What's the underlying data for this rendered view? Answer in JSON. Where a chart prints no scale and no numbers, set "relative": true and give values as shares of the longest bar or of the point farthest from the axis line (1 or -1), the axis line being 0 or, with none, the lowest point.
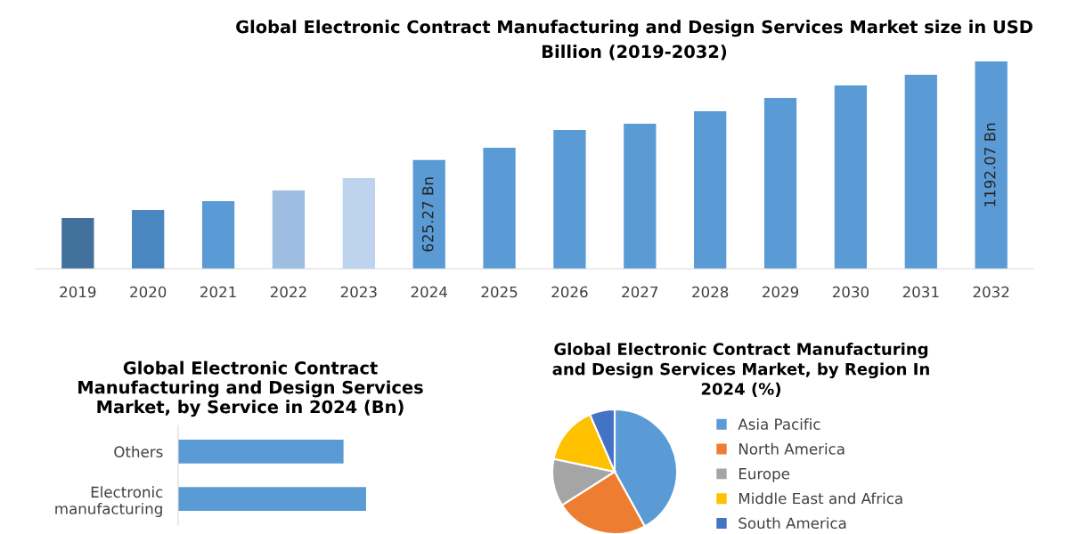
{
  "chart_data": [
    {
      "type": "bar",
      "title": "Global Electronic Contract Manufacturing and Design Services Market size in USD\nBillion (2019-2032)",
      "categories": [
        "2019",
        "2020",
        "2021",
        "2022",
        "2023",
        "2024",
        "2025",
        "2026",
        "2027",
        "2028",
        "2029",
        "2030",
        "2031",
        "2032"
      ],
      "values": [
        292,
        338,
        389,
        450,
        522,
        625.27,
        696,
        798,
        834,
        906,
        982,
        1054,
        1115,
        1192.07
      ],
      "colors": [
        "#41719c",
        "#4a86c0",
        "#5b9bd5",
        "#9dbde3",
        "#bdd3ee",
        "#5b9bd5",
        "#5b9bd5",
        "#5b9bd5",
        "#5b9bd5",
        "#5b9bd5",
        "#5b9bd5",
        "#5b9bd5",
        "#5b9bd5",
        "#5b9bd5"
      ],
      "value_labels": [
        null,
        null,
        null,
        null,
        null,
        "625.27 Bn",
        null,
        null,
        null,
        null,
        null,
        null,
        null,
        "1192.07 Bn"
      ],
      "ylim": [
        0,
        1192.07
      ],
      "tick_labels": "x",
      "grid": false
    },
    {
      "type": "bar",
      "orientation": "horizontal",
      "relative": true,
      "title": "Global Electronic Contract\nManufacturing and Design Services\nMarket, by Service in 2024 (Bn)",
      "categories": [
        "Others",
        "Electronic\nmanufacturing"
      ],
      "values": [
        0.88,
        1
      ],
      "color": "#5b9bd5",
      "grid": false
    },
    {
      "type": "pie",
      "title": "Global Electronic Contract Manufacturing\nand Design Services Market, by Region In\n2024 (%)",
      "categories": [
        "Asia Pacific",
        "North America",
        "Europe",
        "Middle East and Africa",
        "South America"
      ],
      "values": [
        42,
        24,
        12.3,
        15.2,
        6.5
      ],
      "colors": [
        "#5b9bd5",
        "#ed7d31",
        "#a5a5a5",
        "#ffc000",
        "#4472c4"
      ],
      "legend": "right"
    }
  ]
}
